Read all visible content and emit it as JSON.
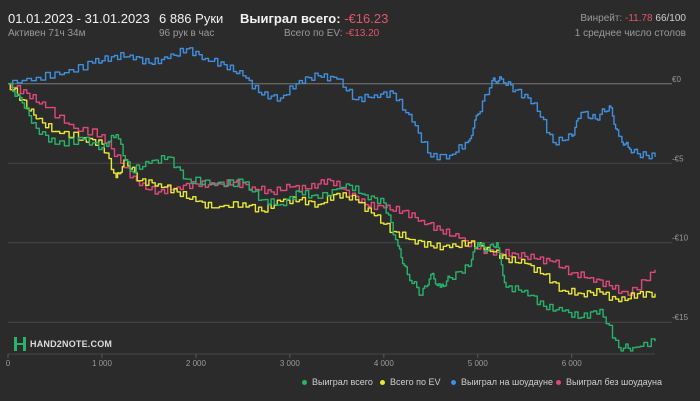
{
  "header": {
    "date_range": "01.01.2023 - 31.01.2023",
    "active_time": "Активен 71ч 34м",
    "hands": "6 886 Руки",
    "hands_rate": "96 рук в час",
    "won_label": "Выиграл всего:",
    "won_value": "-€16.23",
    "ev_label": "Всего по EV:",
    "ev_value": "-€13.20",
    "winrate_label": "Винрейт:",
    "winrate_value": "-11.78",
    "winrate_ratio": "66/100",
    "tables": "1 среднее число столов"
  },
  "logo": {
    "text": "HAND2NOTE.COM"
  },
  "chart_data": {
    "type": "line",
    "x_ticks": [
      "0",
      "1 000",
      "2 000",
      "3 000",
      "4 000",
      "5 000",
      "6 000"
    ],
    "x_tick_values": [
      0,
      1000,
      2000,
      3000,
      4000,
      5000,
      6000
    ],
    "y_ticks": [
      "€0",
      "-€5",
      "-€10",
      "-€15"
    ],
    "y_tick_values": [
      0,
      -5,
      -10,
      -15
    ],
    "xlim": [
      0,
      6886
    ],
    "ylim": [
      -17,
      2
    ],
    "legend_position": "bottom-right",
    "series": [
      {
        "name": "Выиграл всего",
        "color": "#27b36b",
        "points": [
          [
            0,
            0
          ],
          [
            150,
            -1.2
          ],
          [
            300,
            -2.8
          ],
          [
            500,
            -3.8
          ],
          [
            800,
            -3.5
          ],
          [
            1000,
            -4.0
          ],
          [
            1150,
            -3.2
          ],
          [
            1300,
            -5.5
          ],
          [
            1500,
            -5.0
          ],
          [
            1700,
            -4.6
          ],
          [
            1900,
            -6.0
          ],
          [
            2200,
            -6.3
          ],
          [
            2500,
            -6.2
          ],
          [
            2700,
            -7.3
          ],
          [
            2900,
            -7.6
          ],
          [
            3100,
            -6.8
          ],
          [
            3300,
            -7.2
          ],
          [
            3600,
            -6.3
          ],
          [
            3800,
            -7.0
          ],
          [
            4000,
            -7.5
          ],
          [
            4150,
            -10.2
          ],
          [
            4250,
            -12.0
          ],
          [
            4400,
            -13.3
          ],
          [
            4500,
            -12.0
          ],
          [
            4600,
            -12.8
          ],
          [
            4700,
            -12.2
          ],
          [
            4900,
            -11.5
          ],
          [
            5000,
            -10.0
          ],
          [
            5100,
            -10.5
          ],
          [
            5200,
            -10.0
          ],
          [
            5300,
            -12.8
          ],
          [
            5500,
            -13.0
          ],
          [
            5700,
            -14.0
          ],
          [
            5900,
            -14.3
          ],
          [
            6100,
            -14.7
          ],
          [
            6300,
            -14.2
          ],
          [
            6500,
            -16.6
          ],
          [
            6650,
            -16.6
          ],
          [
            6886,
            -16.2
          ]
        ]
      },
      {
        "name": "Всего по EV",
        "color": "#e8e835",
        "points": [
          [
            0,
            0
          ],
          [
            150,
            -1.0
          ],
          [
            300,
            -2.2
          ],
          [
            500,
            -3.0
          ],
          [
            800,
            -3.4
          ],
          [
            1000,
            -3.8
          ],
          [
            1150,
            -5.9
          ],
          [
            1250,
            -4.8
          ],
          [
            1400,
            -6.1
          ],
          [
            1600,
            -6.3
          ],
          [
            1800,
            -6.8
          ],
          [
            2000,
            -7.4
          ],
          [
            2200,
            -7.8
          ],
          [
            2500,
            -7.5
          ],
          [
            2700,
            -8.0
          ],
          [
            2900,
            -7.4
          ],
          [
            3100,
            -7.3
          ],
          [
            3300,
            -7.6
          ],
          [
            3500,
            -6.9
          ],
          [
            3700,
            -7.3
          ],
          [
            3900,
            -8.3
          ],
          [
            4100,
            -9.3
          ],
          [
            4300,
            -9.8
          ],
          [
            4500,
            -10.2
          ],
          [
            4700,
            -10.3
          ],
          [
            4900,
            -10.0
          ],
          [
            5100,
            -10.3
          ],
          [
            5300,
            -11.0
          ],
          [
            5500,
            -11.3
          ],
          [
            5700,
            -12.0
          ],
          [
            5900,
            -13.0
          ],
          [
            6100,
            -13.2
          ],
          [
            6300,
            -13.1
          ],
          [
            6500,
            -13.7
          ],
          [
            6700,
            -13.2
          ],
          [
            6886,
            -13.2
          ]
        ]
      },
      {
        "name": "Выиграл на шоудауне",
        "color": "#3f8fdf",
        "points": [
          [
            0,
            0
          ],
          [
            300,
            0.4
          ],
          [
            600,
            0.7
          ],
          [
            900,
            1.3
          ],
          [
            1100,
            1.7
          ],
          [
            1300,
            1.8
          ],
          [
            1500,
            1.3
          ],
          [
            1700,
            1.6
          ],
          [
            1900,
            2.2
          ],
          [
            2100,
            1.6
          ],
          [
            2300,
            1.2
          ],
          [
            2500,
            0.5
          ],
          [
            2700,
            -0.7
          ],
          [
            2900,
            -0.9
          ],
          [
            3100,
            0.2
          ],
          [
            3300,
            0.5
          ],
          [
            3500,
            0.3
          ],
          [
            3700,
            -1.0
          ],
          [
            3900,
            -0.7
          ],
          [
            4100,
            -0.6
          ],
          [
            4300,
            -2.4
          ],
          [
            4500,
            -4.6
          ],
          [
            4700,
            -4.5
          ],
          [
            4900,
            -3.6
          ],
          [
            5000,
            -1.9
          ],
          [
            5150,
            0.2
          ],
          [
            5250,
            0.3
          ],
          [
            5400,
            -0.4
          ],
          [
            5600,
            -1.2
          ],
          [
            5800,
            -3.7
          ],
          [
            6000,
            -3.3
          ],
          [
            6100,
            -1.8
          ],
          [
            6250,
            -2.2
          ],
          [
            6400,
            -1.4
          ],
          [
            6500,
            -3.3
          ],
          [
            6600,
            -4.0
          ],
          [
            6700,
            -4.4
          ],
          [
            6886,
            -4.6
          ]
        ]
      },
      {
        "name": "Выиграл без шоудауна",
        "color": "#e0487c",
        "points": [
          [
            0,
            0
          ],
          [
            200,
            -0.6
          ],
          [
            400,
            -1.5
          ],
          [
            700,
            -2.8
          ],
          [
            1000,
            -3.2
          ],
          [
            1200,
            -5.0
          ],
          [
            1400,
            -6.4
          ],
          [
            1600,
            -6.8
          ],
          [
            1800,
            -6.5
          ],
          [
            2000,
            -6.3
          ],
          [
            2200,
            -6.4
          ],
          [
            2400,
            -6.2
          ],
          [
            2600,
            -6.5
          ],
          [
            2800,
            -6.8
          ],
          [
            3000,
            -6.5
          ],
          [
            3200,
            -6.6
          ],
          [
            3400,
            -6.0
          ],
          [
            3600,
            -6.7
          ],
          [
            3800,
            -7.6
          ],
          [
            4000,
            -7.8
          ],
          [
            4200,
            -8.0
          ],
          [
            4400,
            -8.6
          ],
          [
            4600,
            -9.2
          ],
          [
            4800,
            -9.7
          ],
          [
            5000,
            -10.4
          ],
          [
            5200,
            -10.6
          ],
          [
            5400,
            -10.7
          ],
          [
            5600,
            -11.0
          ],
          [
            5800,
            -11.2
          ],
          [
            6000,
            -11.9
          ],
          [
            6200,
            -12.2
          ],
          [
            6400,
            -12.7
          ],
          [
            6600,
            -13.3
          ],
          [
            6886,
            -11.7
          ]
        ]
      }
    ]
  }
}
